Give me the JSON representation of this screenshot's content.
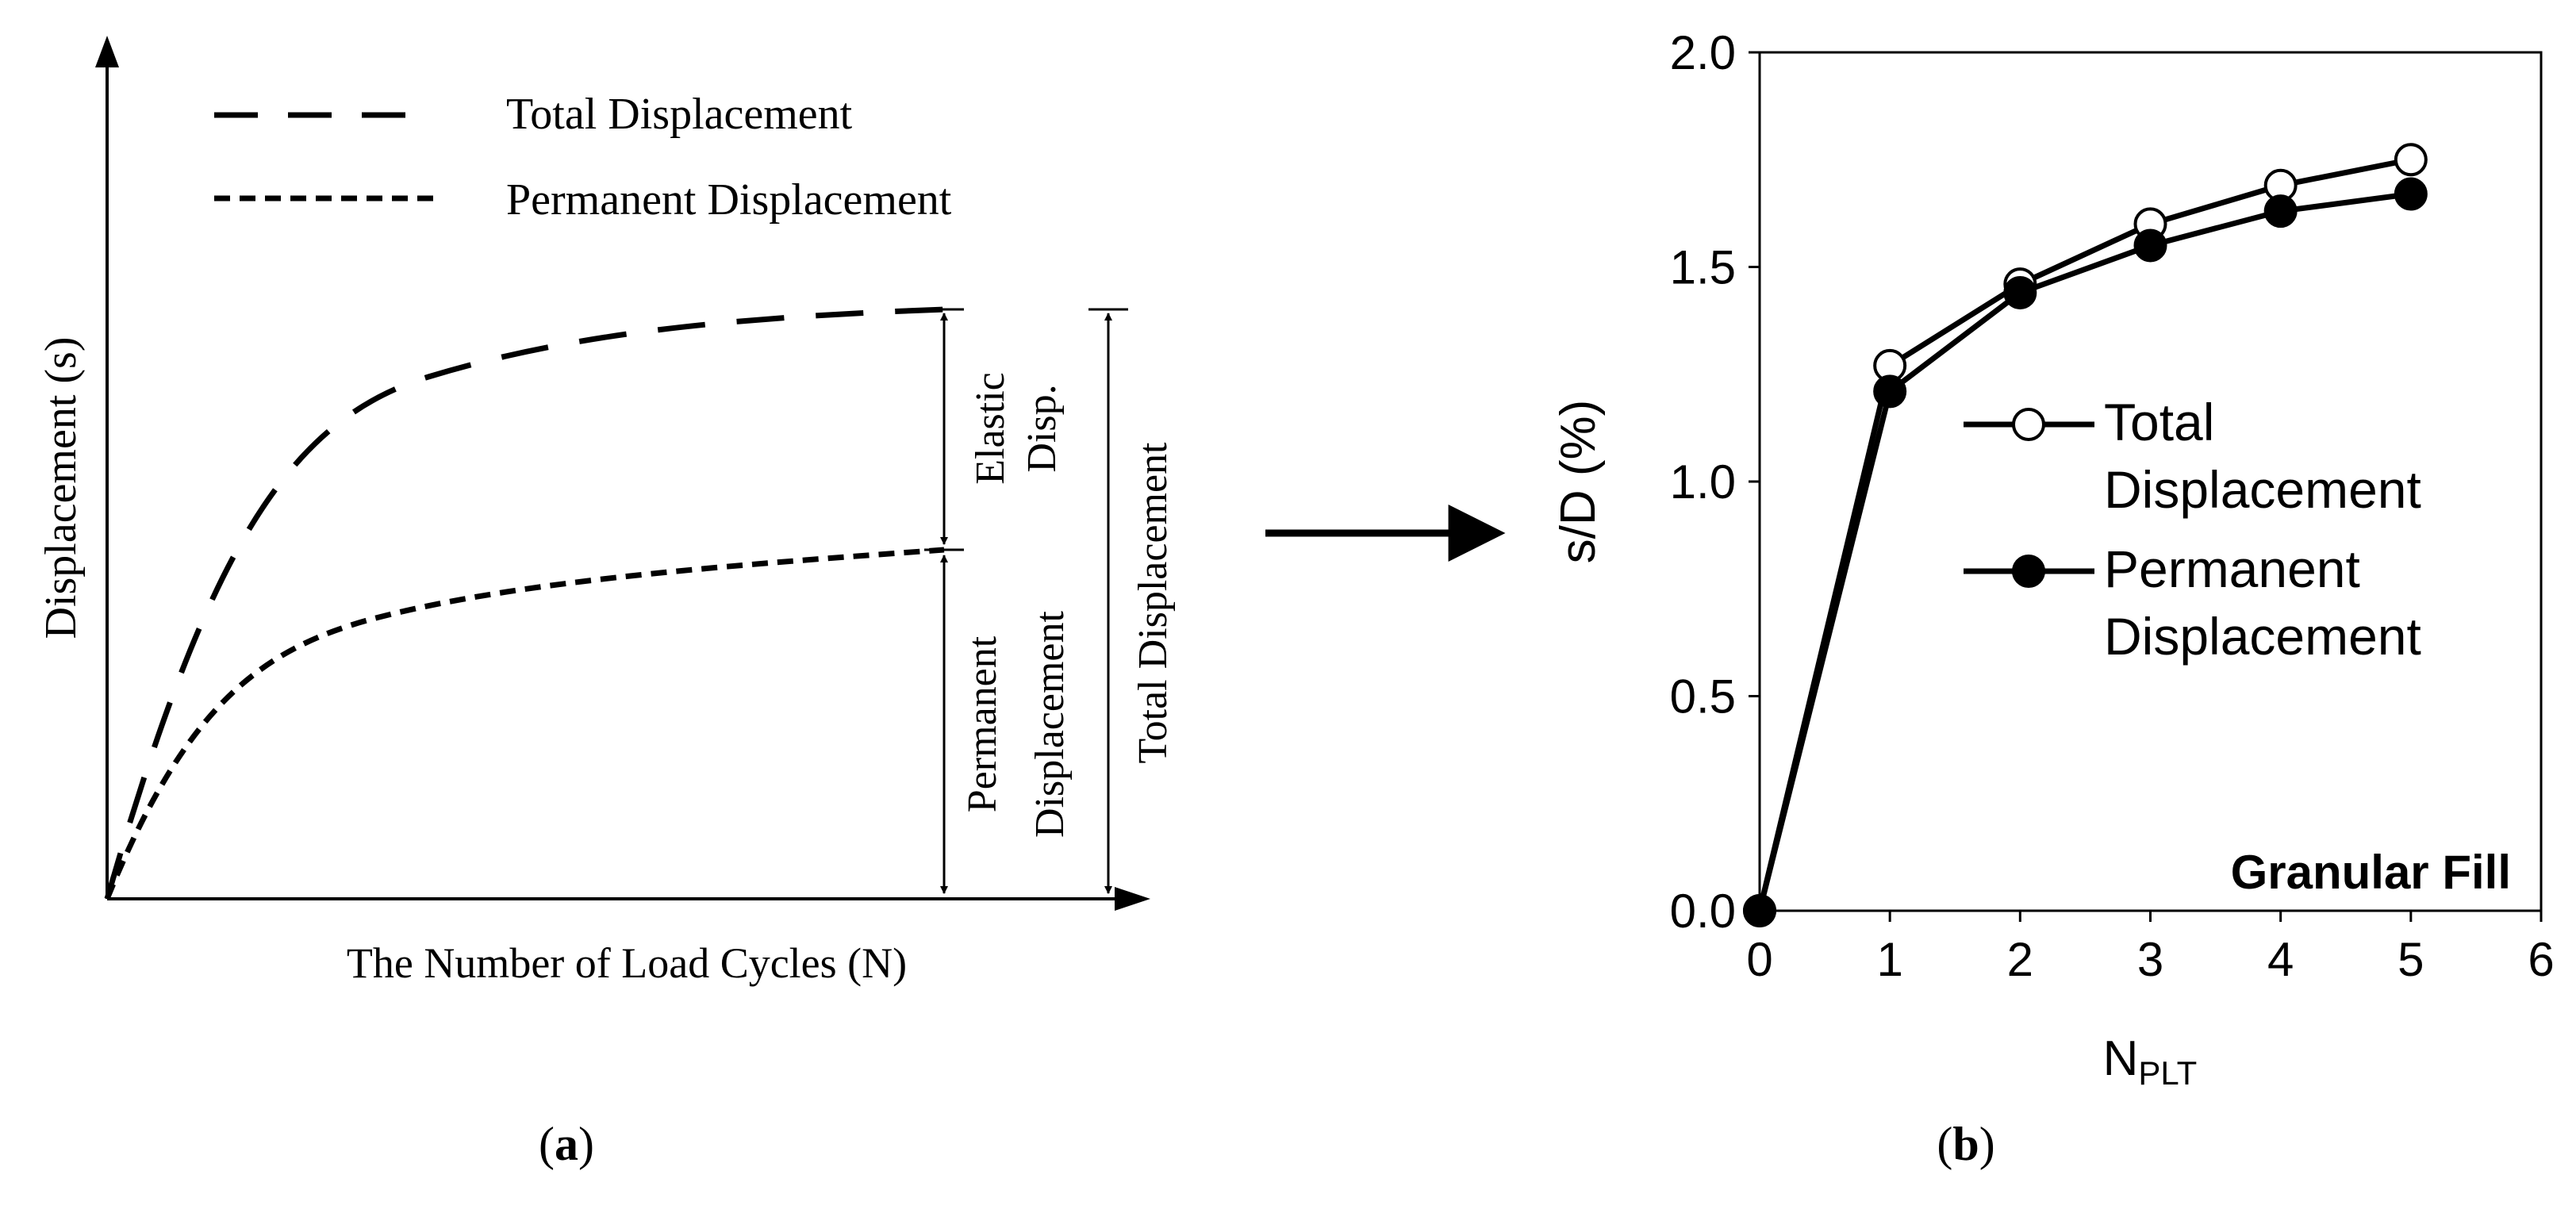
{
  "chart_data": [
    {
      "panel": "a",
      "type": "line",
      "conceptual": true,
      "xlabel": "The Number of Load Cycles (N)",
      "ylabel": "Displacement (s)",
      "legend": [
        {
          "label": "Total Displacement",
          "style": "long-dash"
        },
        {
          "label": "Permanent Displacement",
          "style": "short-dash"
        }
      ],
      "annotations": {
        "elastic_line1": "Elastic",
        "elastic_line2": "Disp.",
        "permanent_line1": "Permanent",
        "permanent_line2": "Displacement",
        "total": "Total Displacement"
      },
      "caption_letter": "a"
    },
    {
      "panel": "b",
      "type": "line",
      "x": [
        0,
        1,
        2,
        3,
        4,
        5
      ],
      "series": [
        {
          "name": "Total Displacement",
          "marker": "open-circle",
          "values": [
            0,
            1.27,
            1.46,
            1.6,
            1.69,
            1.75
          ]
        },
        {
          "name": "Permanent Displacement",
          "marker": "filled-circle",
          "values": [
            0,
            1.21,
            1.44,
            1.55,
            1.63,
            1.67
          ]
        }
      ],
      "legend_lines": [
        [
          "Total",
          "Displacement"
        ],
        [
          "Permanent",
          "Displacement"
        ]
      ],
      "xlim": [
        0,
        6
      ],
      "ylim": [
        0,
        2.0
      ],
      "xticks": [
        "0",
        "1",
        "2",
        "3",
        "4",
        "5",
        "6"
      ],
      "yticks": [
        "0.0",
        "0.5",
        "1.0",
        "1.5",
        "2.0"
      ],
      "xlabel_main": "N",
      "xlabel_sub": "PLT",
      "ylabel": "s/D (%)",
      "annotation": "Granular Fill",
      "caption_letter": "b"
    }
  ],
  "arrow": "right-arrow"
}
